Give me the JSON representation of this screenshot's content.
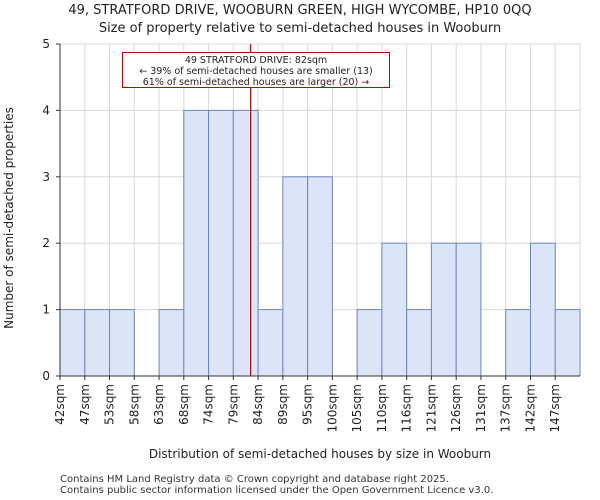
{
  "title": "49, STRATFORD DRIVE, WOOBURN GREEN, HIGH WYCOMBE, HP10 0QQ",
  "subtitle": "Size of property relative to semi-detached houses in Wooburn",
  "annotation": {
    "line1": "49 STRATFORD DRIVE: 82sqm",
    "line2": "← 39% of semi-detached houses are smaller (13)",
    "line3": "61% of semi-detached houses are larger (20) →"
  },
  "footer": {
    "line1": "Contains HM Land Registry data © Crown copyright and database right 2025.",
    "line2": "Contains public sector information licensed under the Open Government Licence v3.0."
  },
  "colors": {
    "bar_fill": "#dbe5f7",
    "bar_edge": "#6e86c0",
    "marker": "#a00000",
    "grid": "#d8d8d8"
  },
  "chart_data": {
    "type": "bar",
    "title": "49, STRATFORD DRIVE, WOOBURN GREEN, HIGH WYCOMBE, HP10 0QQ",
    "subtitle": "Size of property relative to semi-detached houses in Wooburn",
    "xlabel": "Distribution of semi-detached houses by size in Wooburn",
    "ylabel": "Number of semi-detached properties",
    "categories": [
      "42sqm",
      "47sqm",
      "53sqm",
      "58sqm",
      "63sqm",
      "68sqm",
      "74sqm",
      "79sqm",
      "84sqm",
      "89sqm",
      "95sqm",
      "100sqm",
      "105sqm",
      "110sqm",
      "116sqm",
      "121sqm",
      "126sqm",
      "131sqm",
      "137sqm",
      "142sqm",
      "147sqm"
    ],
    "values": [
      1,
      1,
      1,
      0,
      1,
      4,
      4,
      4,
      1,
      3,
      3,
      0,
      1,
      2,
      1,
      2,
      2,
      0,
      1,
      2,
      1
    ],
    "ylim": [
      0,
      5
    ],
    "yticks": [
      0,
      1,
      2,
      3,
      4,
      5
    ],
    "grid": true,
    "marker_category_position": 7.7
  }
}
